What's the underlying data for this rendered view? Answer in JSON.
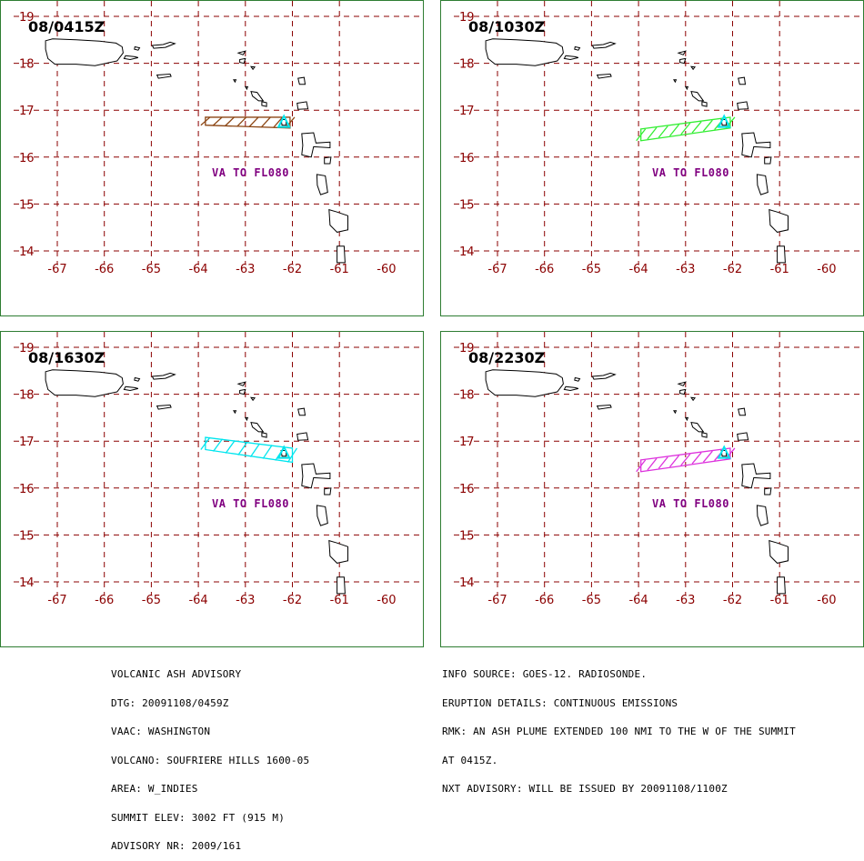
{
  "map_settings": {
    "lon_labels": [
      "-67",
      "-66",
      "-65",
      "-64",
      "-63",
      "-62",
      "-61",
      "-60"
    ],
    "lat_labels": [
      "19",
      "18",
      "17",
      "16",
      "15",
      "14"
    ],
    "lon_values": [
      -67,
      -66,
      -65,
      -64,
      -63,
      -62,
      -61,
      -60
    ],
    "lat_values": [
      19,
      18,
      17,
      16,
      15,
      14
    ],
    "grid_color": "#8b0000",
    "frame_color": "#2e7d32",
    "volcano_color": "#00e5ee",
    "volcano": {
      "lon": -62.18,
      "lat": 16.72
    }
  },
  "panels": [
    {
      "time_label": "08/0415Z",
      "va_label": "VA TO FL080",
      "va_label_color": "#800080",
      "plume_color": "#8b4513",
      "plume": {
        "west_lon": -63.85,
        "east_lon": -62.05,
        "west_lat_top": 16.85,
        "west_lat_bottom": 16.68,
        "east_lat_top": 16.85,
        "east_lat_bottom": 16.62
      }
    },
    {
      "time_label": "08/1030Z",
      "va_label": "VA TO FL080",
      "va_label_color": "#800080",
      "plume_color": "#33ee33",
      "plume": {
        "west_lon": -63.95,
        "east_lon": -62.05,
        "west_lat_top": 16.6,
        "west_lat_bottom": 16.35,
        "east_lat_top": 16.85,
        "east_lat_bottom": 16.62
      }
    },
    {
      "time_label": "08/1630Z",
      "va_label": "VA TO FL080",
      "va_label_color": "#800080",
      "plume_color": "#00e5ee",
      "plume": {
        "west_lon": -63.85,
        "east_lon": -62.0,
        "west_lat_top": 17.08,
        "west_lat_bottom": 16.82,
        "east_lat_top": 16.85,
        "east_lat_bottom": 16.55
      }
    },
    {
      "time_label": "08/2230Z",
      "va_label": "VA TO FL080",
      "va_label_color": "#800080",
      "plume_color": "#dd33dd",
      "plume": {
        "west_lon": -63.95,
        "east_lon": -62.05,
        "west_lat_top": 16.6,
        "west_lat_bottom": 16.35,
        "east_lat_top": 16.85,
        "east_lat_bottom": 16.62
      }
    }
  ],
  "advisory_left": [
    "VOLCANIC ASH ADVISORY",
    "DTG: 20091108/0459Z",
    "VAAC: WASHINGTON",
    "VOLCANO: SOUFRIERE HILLS 1600-05",
    "AREA: W_INDIES",
    "SUMMIT ELEV: 3002 FT (915 M)",
    "ADVISORY NR: 2009/161"
  ],
  "advisory_right": [
    "INFO SOURCE: GOES-12. RADIOSONDE.",
    "ERUPTION DETAILS: CONTINUOUS EMISSIONS",
    "RMK: AN ASH PLUME EXTENDED 100 NMI TO THE W OF THE SUMMIT",
    "AT 0415Z.",
    "NXT ADVISORY: WILL BE ISSUED BY 20091108/1100Z"
  ]
}
